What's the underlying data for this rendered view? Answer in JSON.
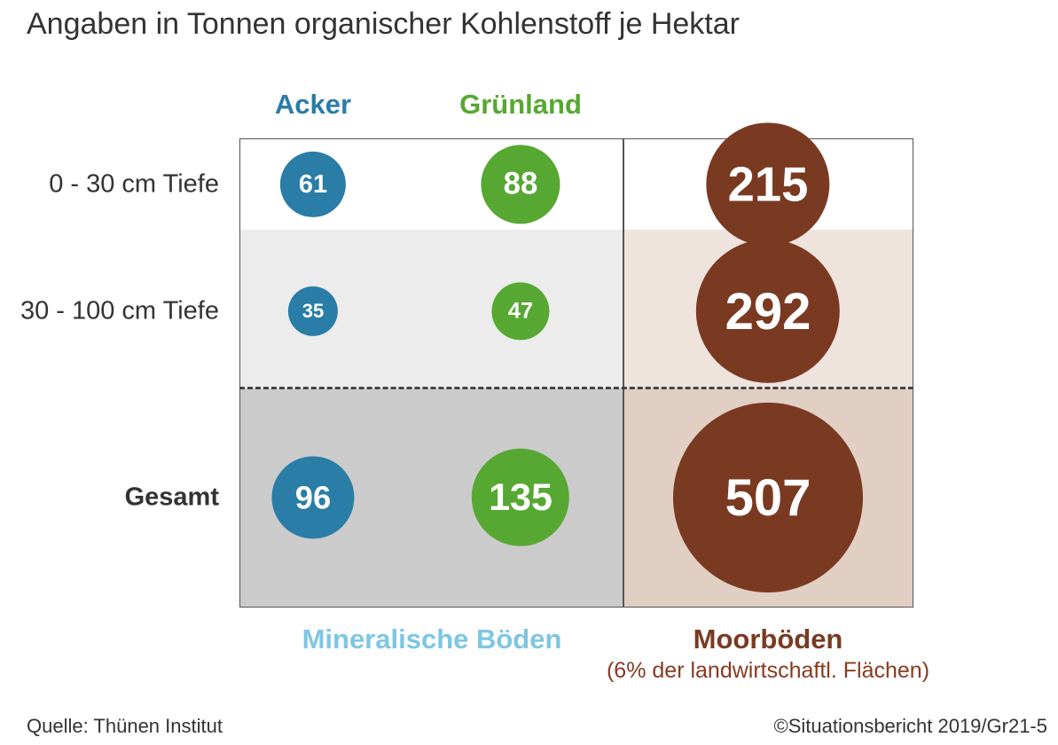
{
  "title": "Angaben in Tonnen organischer Kohlenstoff je Hektar",
  "colors": {
    "acker": "#2a7da6",
    "gruenland": "#56a832",
    "moor": "#7a3a22",
    "mineral_label": "#7ec6e3"
  },
  "chart_data": {
    "type": "bubble-matrix",
    "title": "Angaben in Tonnen organischer Kohlenstoff je Hektar",
    "rows": [
      "0 - 30 cm Tiefe",
      "30 - 100 cm Tiefe",
      "Gesamt"
    ],
    "columns": [
      "Acker",
      "Grünland",
      "Moorböden"
    ],
    "values": {
      "Acker": [
        61,
        35,
        96
      ],
      "Grünland": [
        88,
        47,
        135
      ],
      "Moorböden": [
        215,
        292,
        507
      ]
    },
    "groups": [
      {
        "label": "Mineralische Böden",
        "columns": [
          "Acker",
          "Grünland"
        ]
      },
      {
        "label": "Moorböden",
        "sub": "(6% der landwirtschaftl. Flächen)",
        "columns": [
          "Moorböden"
        ]
      }
    ]
  },
  "column_headers": {
    "acker": "Acker",
    "gruenland": "Grünland"
  },
  "row_labels": {
    "r0": "0 - 30 cm Tiefe",
    "r1": "30 - 100 cm Tiefe",
    "r2": "Gesamt"
  },
  "groups": {
    "mineral": "Mineralische Böden",
    "moor": "Moorböden",
    "moor_sub": "(6% der landwirtschaftl. Flächen)"
  },
  "footer": {
    "source": "Quelle: Thünen Institut",
    "copyright": "©Situationsbericht 2019/Gr21-5"
  }
}
